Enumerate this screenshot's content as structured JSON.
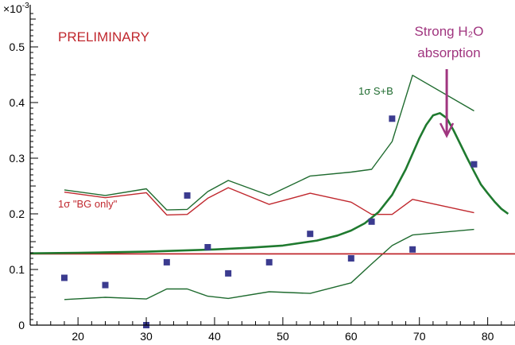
{
  "chart_data": {
    "type": "scatter",
    "title": "",
    "xlabel": "",
    "ylabel": "",
    "xlim": [
      13,
      84
    ],
    "ylim": [
      0,
      0.57
    ],
    "y_exponent_label": "×10",
    "y_exponent": "-3",
    "x_ticks": [
      20,
      30,
      40,
      50,
      60,
      70,
      80
    ],
    "x_tick_labels": [
      "20",
      "30",
      "40",
      "50",
      "60",
      "70",
      "80"
    ],
    "y_ticks": [
      0,
      0.1,
      0.2,
      0.3,
      0.4,
      0.5
    ],
    "y_tick_labels": [
      "0",
      "0.1",
      "0.2",
      "0.3",
      "0.4",
      "0.5"
    ],
    "grid": false,
    "points": {
      "x": [
        18,
        24,
        30,
        33,
        36,
        39,
        42,
        48,
        54,
        60,
        63,
        66,
        69,
        78
      ],
      "y": [
        0.085,
        0.072,
        0.0,
        0.113,
        0.233,
        0.14,
        0.093,
        0.113,
        0.164,
        0.12,
        0.186,
        0.371,
        0.136,
        0.289
      ],
      "color": "#3b3b8f"
    },
    "series": [
      {
        "name": "1σ S+B",
        "style": "upper",
        "color": "#1f6b2f",
        "x": [
          18,
          24,
          30,
          33,
          36,
          39,
          42,
          48,
          54,
          60,
          63,
          66,
          69,
          78
        ],
        "y": [
          0.243,
          0.233,
          0.245,
          0.207,
          0.208,
          0.24,
          0.26,
          0.233,
          0.268,
          0.275,
          0.28,
          0.33,
          0.449,
          0.385
        ]
      },
      {
        "style": "lower",
        "color": "#1f6b2f",
        "x": [
          18,
          24,
          30,
          33,
          36,
          39,
          42,
          48,
          54,
          60,
          63,
          66,
          69,
          78
        ],
        "y": [
          0.046,
          0.05,
          0.047,
          0.065,
          0.065,
          0.052,
          0.048,
          0.06,
          0.057,
          0.076,
          0.11,
          0.143,
          0.162,
          0.172
        ]
      },
      {
        "name": "1σ \"BG only\"",
        "color": "#c0282e",
        "x": [
          18,
          24,
          30,
          33,
          36,
          39,
          42,
          48,
          54,
          60,
          63,
          66,
          69,
          78
        ],
        "y": [
          0.239,
          0.229,
          0.238,
          0.198,
          0.199,
          0.228,
          0.247,
          0.217,
          0.237,
          0.221,
          0.199,
          0.199,
          0.226,
          0.202
        ]
      },
      {
        "style": "baseline",
        "color": "#c0282e",
        "x": [
          13,
          84
        ],
        "y": [
          0.128,
          0.128
        ]
      },
      {
        "style": "fit-curve",
        "color": "#1f7a2f",
        "x": [
          13,
          20,
          30,
          40,
          45,
          50,
          55,
          58,
          60,
          62,
          64,
          66,
          68,
          70,
          71,
          72,
          73,
          74,
          75,
          76,
          77,
          78,
          79,
          80,
          81,
          82,
          83
        ],
        "y": [
          0.129,
          0.13,
          0.132,
          0.136,
          0.139,
          0.143,
          0.152,
          0.161,
          0.17,
          0.183,
          0.203,
          0.234,
          0.28,
          0.336,
          0.36,
          0.377,
          0.381,
          0.372,
          0.35,
          0.325,
          0.3,
          0.276,
          0.253,
          0.237,
          0.222,
          0.209,
          0.2
        ]
      }
    ],
    "annotations": {
      "preliminary": {
        "text": "PRELIMINARY",
        "color": "#c0282e"
      },
      "label_sb": {
        "text": "1σ S+B",
        "color": "#1f6b2f"
      },
      "label_bg": {
        "text": "1σ \"BG only\"",
        "color": "#c0282e"
      },
      "absorption_line1": {
        "text": "Strong H₂O",
        "color": "#a0357f"
      },
      "absorption_line2": {
        "text": "absorption",
        "color": "#a0357f"
      },
      "arrow": {
        "x": 74,
        "y_from": 0.46,
        "y_to": 0.34,
        "color": "#a0357f"
      }
    }
  }
}
